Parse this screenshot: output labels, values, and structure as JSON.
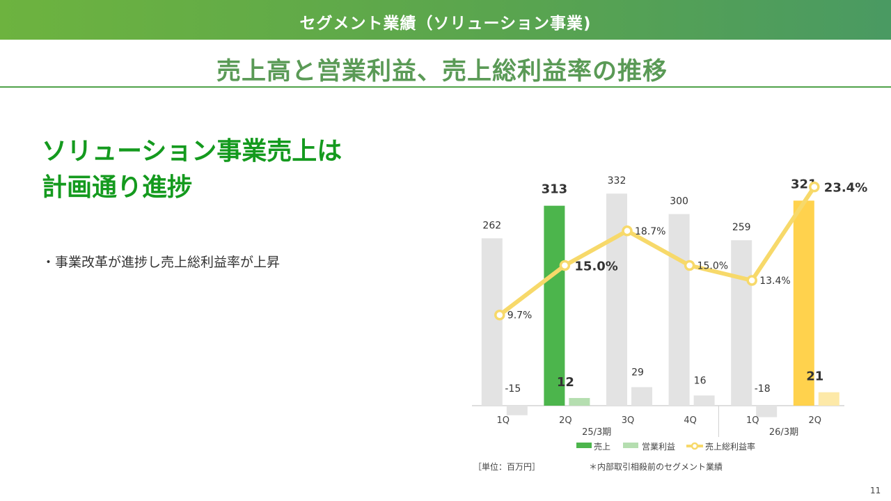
{
  "header": {
    "section_label": "セグメント業績（ソリューション事業)",
    "page_title": "売上高と営業利益、売上総利益率の推移"
  },
  "main": {
    "headline_line1": "ソリューション事業売上は",
    "headline_line2": "計画通り進捗",
    "bullet": "・事業改革が進捗し売上総利益率が上昇"
  },
  "footer": {
    "unit_note": "［単位：百万円］",
    "foot_note": "＊内部取引相殺前のセグメント業績",
    "page_number": "11"
  },
  "colors": {
    "header_green": "#5aa54e",
    "title_green": "#5a9a56",
    "headline_green": "#149a1e",
    "sales_highlight": "#4cb54c",
    "op_highlight": "#b5deb0",
    "sales_latest": "#ffd24d",
    "op_latest": "#fde9a8",
    "grey_bar": "#e3e3e3",
    "margin_line": "#f7d96a"
  },
  "chart_data": {
    "type": "bar",
    "categories": [
      "1Q",
      "2Q",
      "3Q",
      "4Q",
      "1Q",
      "2Q"
    ],
    "period_groups": [
      {
        "label": "25/3期",
        "span": [
          0,
          3
        ]
      },
      {
        "label": "26/3期",
        "span": [
          4,
          5
        ]
      }
    ],
    "series": [
      {
        "name": "売上",
        "type": "bar",
        "values": [
          262,
          313,
          332,
          300,
          259,
          321
        ],
        "labels": [
          "262",
          "313",
          "332",
          "300",
          "259",
          "321"
        ]
      },
      {
        "name": "営業利益",
        "type": "bar",
        "values": [
          -15,
          12,
          29,
          16,
          -18,
          21
        ],
        "labels": [
          "-15",
          "12",
          "29",
          "16",
          "-18",
          "21"
        ]
      },
      {
        "name": "売上総利益率",
        "type": "line",
        "values": [
          9.7,
          15.0,
          18.7,
          15.0,
          13.4,
          23.4
        ],
        "labels": [
          "9.7%",
          "15.0%",
          "18.7%",
          "15.0%",
          "13.4%",
          "23.4%"
        ]
      }
    ],
    "highlight_index": [
      1,
      5
    ],
    "bar_ylim": [
      -20,
      340
    ],
    "line_ylim": [
      0,
      30
    ],
    "legend_position": "bottom",
    "grid": false
  }
}
